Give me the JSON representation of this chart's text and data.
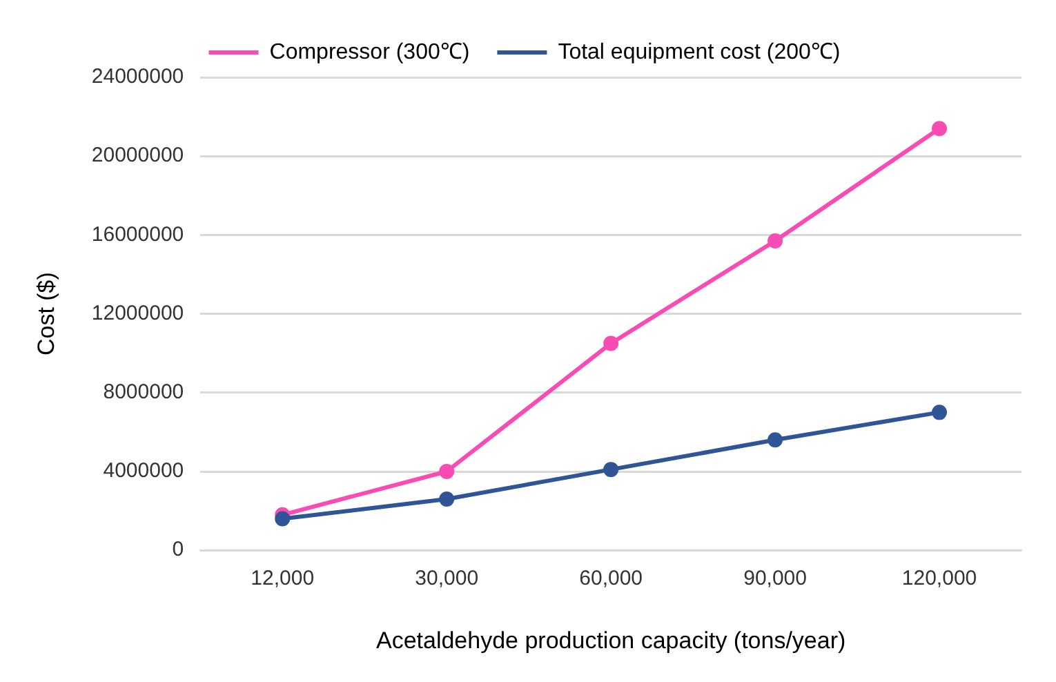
{
  "chart_data": {
    "type": "line",
    "xlabel": "Acetaldehyde production capacity (tons/year)",
    "ylabel": "Cost ($)",
    "categories": [
      "12,000",
      "30,000",
      "60,000",
      "90,000",
      "120,000"
    ],
    "series": [
      {
        "name": "Compressor (300℃)",
        "color": "#f84bb4",
        "values": [
          1800000,
          4000000,
          10500000,
          15700000,
          21400000
        ]
      },
      {
        "name": "Total equipment cost (200℃)",
        "color": "#2f5597",
        "values": [
          1600000,
          2600000,
          4100000,
          5600000,
          7000000
        ]
      }
    ],
    "ylim": [
      0,
      24000000
    ],
    "yticks": [
      0,
      4000000,
      8000000,
      12000000,
      16000000,
      20000000,
      24000000
    ],
    "grid": "y",
    "legend": "top",
    "marker": "circle",
    "line_style": "solid"
  }
}
